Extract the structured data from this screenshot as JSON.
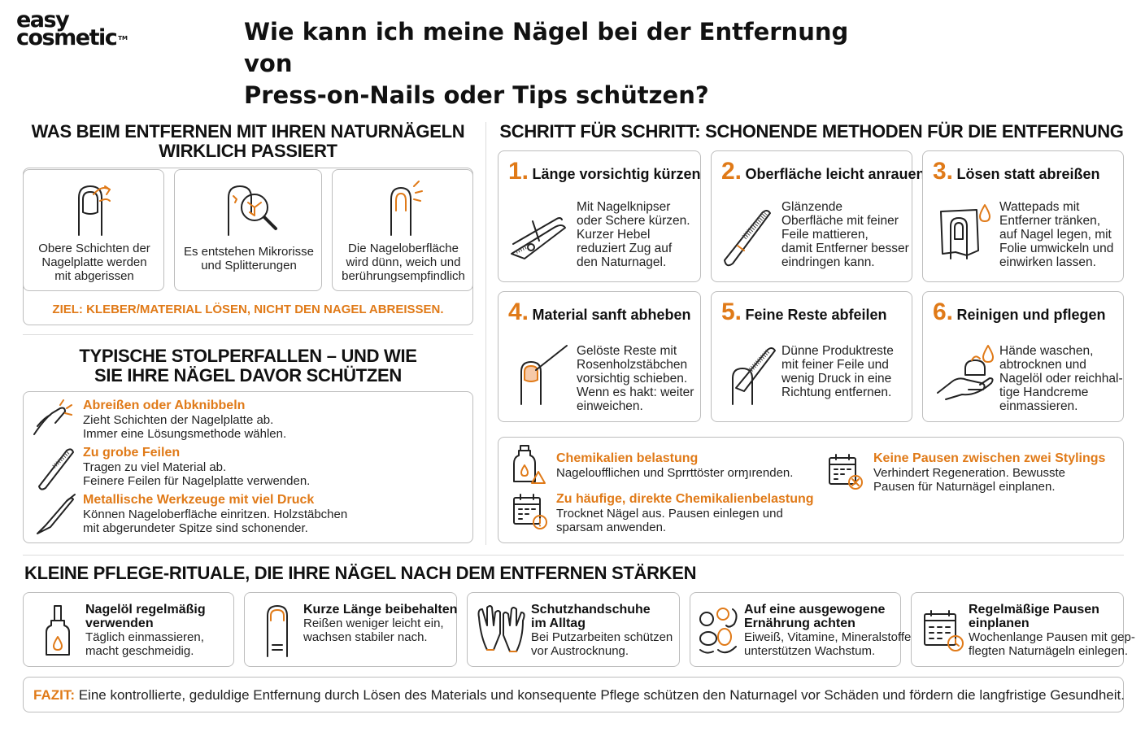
{
  "logo": {
    "line1": "easy",
    "line2": "cosmetic",
    "tm": "TM"
  },
  "title": {
    "line1": "Wie kann ich meine Nägel bei der Entfernung von",
    "line2": "Press-on-Nails oder Tips schützen?"
  },
  "left_section": {
    "heading_line1": "WAS BEIM ENTFERNEN MIT IHREN NATURNÄGELN",
    "heading_line2": "WIRKLICH PASSIERT",
    "cards": [
      {
        "l1": "Obere Schichten der",
        "l2": "Nagelplatte werden",
        "l3": "mit abgerissen",
        "icon": "peeling-nail-icon"
      },
      {
        "l1": "Es entstehen Mikrorisse",
        "l2": "und Splitterungen",
        "l3": "",
        "icon": "magnifier-cracks-icon"
      },
      {
        "l1": "Die Nageloberfläche",
        "l2": "wird dünn, weich und",
        "l3": "berührungsempfindlich",
        "icon": "thin-nail-icon"
      }
    ],
    "goal": "ZIEL: KLEBER/MATERIAL LÖSEN, NICHT DEN NAGEL ABREISSEN."
  },
  "pitfalls": {
    "heading_line1": "TYPISCHE STOLPERFALLEN – UND WIE",
    "heading_line2": "SIE IHRE NÄGEL DAVOR SCHÜTZEN",
    "items": [
      {
        "title": "Abreißen oder Abknibbeln",
        "l1": "Zieht Schichten der Nagelplatte ab.",
        "l2": "Immer eine Lösungsmethode wählen.",
        "icon": "pulling-nail-icon"
      },
      {
        "title": "Zu grobe Feilen",
        "l1": "Tragen zu viel Material ab.",
        "l2": "Feinere Feilen für Nagelplatte verwenden.",
        "icon": "nail-file-icon"
      },
      {
        "title": "Metallische Werkzeuge mit viel Druck",
        "l1": "Können Nageloberfläche einritzen. Holzstäbchen",
        "l2": "mit abgerundeter Spitze sind schonender.",
        "icon": "metal-pusher-icon"
      }
    ]
  },
  "steps_section": {
    "heading": "SCHRITT FÜR SCHRITT: SCHONENDE METHODEN FÜR DIE ENTFERNUNG",
    "steps": [
      {
        "num": "1.",
        "title": "Länge vorsichtig kürzen",
        "lines": [
          "Mit Nagelknipser",
          "oder Schere kürzen.",
          "Kurzer Hebel",
          "reduziert Zug auf",
          "den Naturnagel."
        ],
        "icon": "nail-clipper-icon"
      },
      {
        "num": "2.",
        "title": "Oberfläche leicht anrauen",
        "lines": [
          "Glänzende",
          "Oberfläche mit feiner",
          "Feile mattieren,",
          "damit Entferner besser",
          "eindringen kann."
        ],
        "icon": "buffer-file-icon"
      },
      {
        "num": "3.",
        "title": "Lösen statt abreißen",
        "lines": [
          "Wattepads mit",
          "Entferner tränken,",
          "auf Nagel legen, mit",
          "Folie umwickeln und",
          "einwirken lassen."
        ],
        "icon": "foil-wrap-icon"
      },
      {
        "num": "4.",
        "title": "Material sanft abheben",
        "lines": [
          "Gelöste Reste mit",
          "Rosenholzstäbchen",
          "vorsichtig schieben.",
          "Wenn es hakt: weiter",
          "einweichen."
        ],
        "icon": "orangewood-stick-icon"
      },
      {
        "num": "5.",
        "title": "Feine Reste abfeilen",
        "lines": [
          "Dünne Produktreste",
          "mit feiner Feile und",
          "wenig Druck in eine",
          "Richtung entfernen."
        ],
        "icon": "fine-file-icon"
      },
      {
        "num": "6.",
        "title": "Reinigen und pflegen",
        "lines": [
          "Hände waschen,",
          "abtrocknen und",
          "Nagelöl oder reichhal-",
          "tige Handcreme",
          "einmassieren."
        ],
        "icon": "hand-cream-icon"
      }
    ]
  },
  "warnings": [
    {
      "title": "Chemikalien belastung",
      "l1": "Nageloʋfflichen und Sprrttöster orɱırenden.",
      "l2": "",
      "icon": "chemical-bottle-icon"
    },
    {
      "title": "Zu häufige, direkte Chemikalienbelastung",
      "l1": "Trocknet Nägel aus. Pausen einlegen und",
      "l2": "sparsam anwenden.",
      "icon": "calendar-warning-icon"
    },
    {
      "title": "Keine Pausen zwischen zwei Stylings",
      "l1": "Verhindert Regeneration. Bewusste",
      "l2": "Pausen für Naturnägel einplanen.",
      "icon": "calendar-cross-icon"
    }
  ],
  "care_section": {
    "heading": "KLEINE PFLEGE-RITUALE, DIE IHRE NÄGEL NACH DEM ENTFERNEN STÄRKEN",
    "items": [
      {
        "t1": "Nagelöl regelmäßig",
        "t2": "verwenden",
        "b1": "Täglich einmassieren,",
        "b2": "macht geschmeidig.",
        "icon": "oil-dropper-icon"
      },
      {
        "t1": "Kurze Länge beibehalten",
        "t2": "",
        "b1": "Reißen weniger leicht ein,",
        "b2": "wachsen stabiler nach.",
        "icon": "short-nail-icon"
      },
      {
        "t1": "Schutzhandschuhe",
        "t2": "im Alltag",
        "b1": "Bei Putzarbeiten schützen",
        "b2": "vor Austrocknung.",
        "icon": "gloves-icon"
      },
      {
        "t1": "Auf eine ausgewogene",
        "t2": "Ernährung achten",
        "b1": "Eiweiß, Vitamine, Mineralstoffe",
        "b2": "unterstützen Wachstum.",
        "icon": "healthy-food-icon"
      },
      {
        "t1": "Regelmäßige Pausen",
        "t2": "einplanen",
        "b1": "Wochenlange Pausen mit gep-",
        "b2": "flegten Naturnägeln einlegen.",
        "icon": "calendar-clock-icon"
      }
    ]
  },
  "conclusion": {
    "label": "FAZIT:",
    "text": " Eine kontrollierte, geduldige Entfernung durch Lösen des Materials und konsequente Pflege schützen den Naturnagel vor Schäden und fördern die langfristige Gesundheit."
  },
  "colors": {
    "accent": "#e07a18",
    "text": "#1c1c1c",
    "border": "#bdbdbd"
  }
}
